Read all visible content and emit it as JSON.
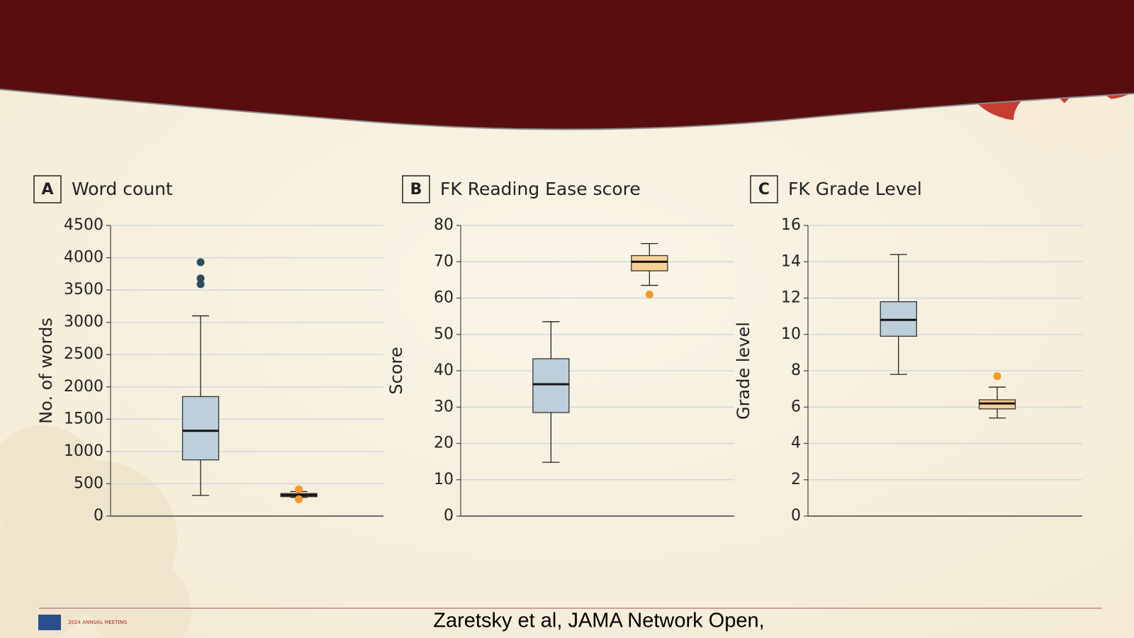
{
  "chart_data": [
    {
      "type": "box",
      "panel_label": "A",
      "title": "Word count",
      "ylabel": "No. of words",
      "ylim": [
        0,
        4500
      ],
      "yticks": [
        0,
        500,
        1000,
        1500,
        2000,
        2500,
        3000,
        3500,
        4000,
        4500
      ],
      "grid": true,
      "series": [
        {
          "color": "#bccfdb",
          "outlier_color": "#2d4c5c",
          "whisker_low": 320,
          "q1": 870,
          "median": 1320,
          "q3": 1850,
          "whisker_high": 3100,
          "outliers": [
            3590,
            3680,
            3930
          ]
        },
        {
          "color": "#f9cf95",
          "outlier_color": "#f39a2b",
          "whisker_low": 290,
          "q1": 300,
          "median": 325,
          "q3": 350,
          "whisker_high": 380,
          "outliers": [
            260,
            415
          ]
        }
      ]
    },
    {
      "type": "box",
      "panel_label": "B",
      "title": "FK Reading Ease score",
      "ylabel": "Score",
      "ylim": [
        0,
        80
      ],
      "yticks": [
        0,
        10,
        20,
        30,
        40,
        50,
        60,
        70,
        80
      ],
      "grid": true,
      "series": [
        {
          "color": "#bccfdb",
          "outlier_color": "#2d4c5c",
          "whisker_low": 14.8,
          "q1": 28.5,
          "median": 36.3,
          "q3": 43.3,
          "whisker_high": 53.5,
          "outliers": []
        },
        {
          "color": "#f9cf95",
          "outlier_color": "#f39a2b",
          "whisker_low": 63.5,
          "q1": 67.5,
          "median": 70,
          "q3": 71.7,
          "whisker_high": 75,
          "outliers": [
            61
          ]
        }
      ]
    },
    {
      "type": "box",
      "panel_label": "C",
      "title": "FK Grade Level",
      "ylabel": "Grade level",
      "ylim": [
        0,
        16
      ],
      "yticks": [
        0,
        2,
        4,
        6,
        8,
        10,
        12,
        14,
        16
      ],
      "grid": true,
      "series": [
        {
          "color": "#bccfdb",
          "outlier_color": "#2d4c5c",
          "whisker_low": 7.8,
          "q1": 9.9,
          "median": 10.8,
          "q3": 11.8,
          "whisker_high": 14.4,
          "outliers": []
        },
        {
          "color": "#f9cf95",
          "outlier_color": "#f39a2b",
          "whisker_low": 5.4,
          "q1": 5.9,
          "median": 6.2,
          "q3": 6.4,
          "whisker_high": 7.1,
          "outliers": [
            7.7
          ]
        }
      ]
    }
  ],
  "footer": {
    "meeting": "2024 ANNUAL MEETING",
    "citation": "Zaretsky et al, JAMA Network Open,"
  }
}
